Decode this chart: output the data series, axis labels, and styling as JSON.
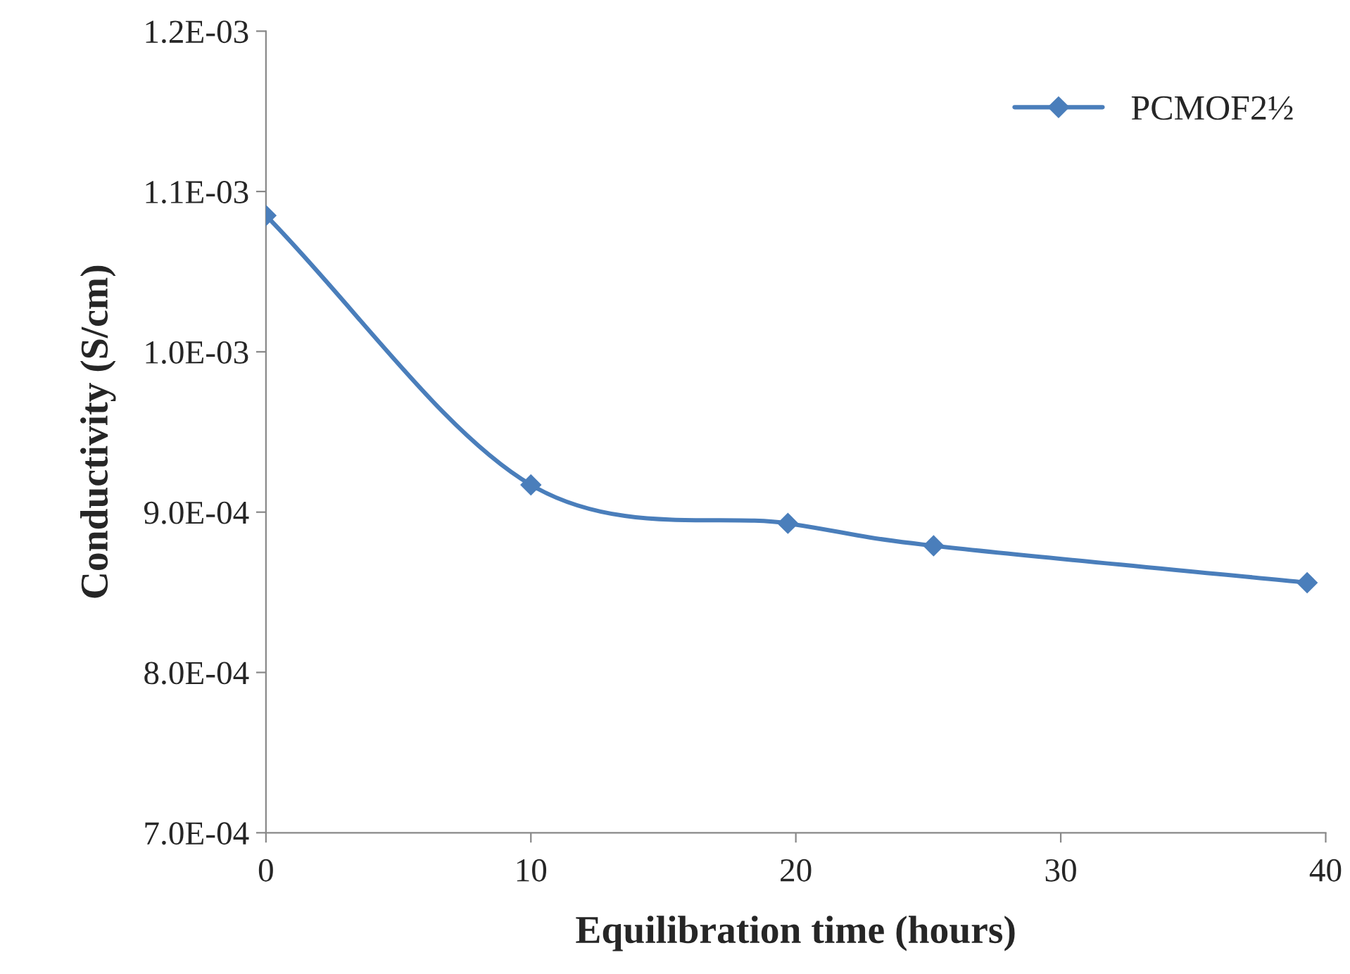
{
  "chart_data": {
    "type": "line",
    "xlabel": "Equilibration time (hours)",
    "ylabel": "Conductivity (S/cm)",
    "x": [
      0,
      10,
      19.7,
      25.2,
      39.3
    ],
    "series": [
      {
        "name": "PCMOF2½",
        "color": "#4a7ebb",
        "values": [
          0.001085,
          0.000917,
          0.000893,
          0.000879,
          0.000856
        ]
      }
    ],
    "xlim": [
      0,
      40
    ],
    "xticks": [
      0,
      10,
      20,
      30,
      40
    ],
    "ylim": [
      0.0007,
      0.0012
    ],
    "yticks": [
      {
        "value": 0.0007,
        "label": "7.0E-04"
      },
      {
        "value": 0.0008,
        "label": "8.0E-04"
      },
      {
        "value": 0.0009,
        "label": "9.0E-04"
      },
      {
        "value": 0.001,
        "label": "1.0E-03"
      },
      {
        "value": 0.0011,
        "label": "1.1E-03"
      },
      {
        "value": 0.0012,
        "label": "1.2E-03"
      }
    ],
    "grid": false,
    "legend": "top right",
    "marker": "diamond",
    "line_style": "solid"
  }
}
